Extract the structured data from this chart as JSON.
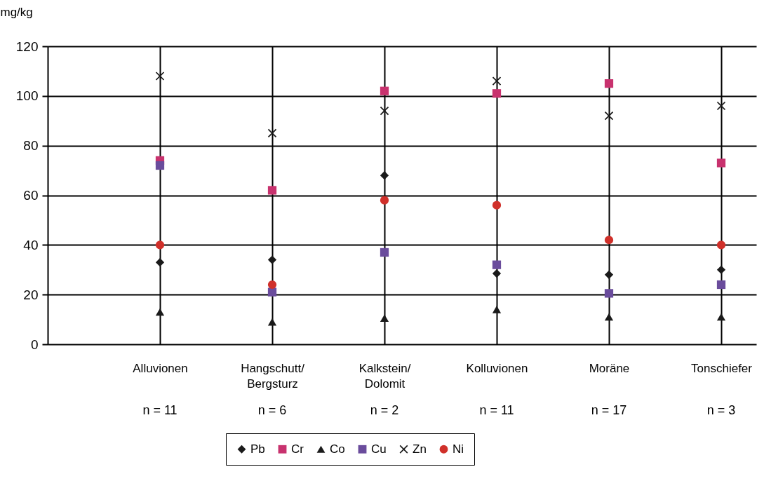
{
  "chart_data": {
    "type": "scatter",
    "ylabel": "mg/kg",
    "categories": [
      "Alluvionen",
      "Hangschutt/ Bergsturz",
      "Kalkstein/ Dolomit",
      "Kolluvionen",
      "Moräne",
      "Tonschiefer"
    ],
    "series": [
      {
        "name": "Pb",
        "color": "#1a1a1a",
        "marker": "diamond",
        "values": [
          33,
          34,
          68,
          28.5,
          28,
          30
        ]
      },
      {
        "name": "Cr",
        "color": "#c8326e",
        "marker": "square",
        "values": [
          74,
          62,
          102,
          101,
          105,
          73
        ]
      },
      {
        "name": "Co",
        "color": "#1a1a1a",
        "marker": "triangle",
        "values": [
          13,
          9,
          10.5,
          14,
          11,
          11
        ]
      },
      {
        "name": "Cu",
        "color": "#6a4c9c",
        "marker": "square",
        "values": [
          72,
          21,
          37,
          32,
          20.5,
          24
        ]
      },
      {
        "name": "Zn",
        "color": "#1a1a1a",
        "marker": "cross",
        "values": [
          108,
          85,
          94,
          106,
          92,
          96
        ]
      },
      {
        "name": "Ni",
        "color": "#d0302a",
        "marker": "circle",
        "values": [
          40,
          24,
          58,
          56,
          42,
          40
        ]
      }
    ],
    "annotations": [
      "n = 11",
      "n = 6",
      "n = 2",
      "n = 11",
      "n = 17",
      "n = 3"
    ],
    "ylim": [
      0,
      120
    ],
    "yticks": [
      0,
      20,
      40,
      60,
      80,
      100,
      120
    ],
    "grid": true,
    "legend": "bottom"
  }
}
